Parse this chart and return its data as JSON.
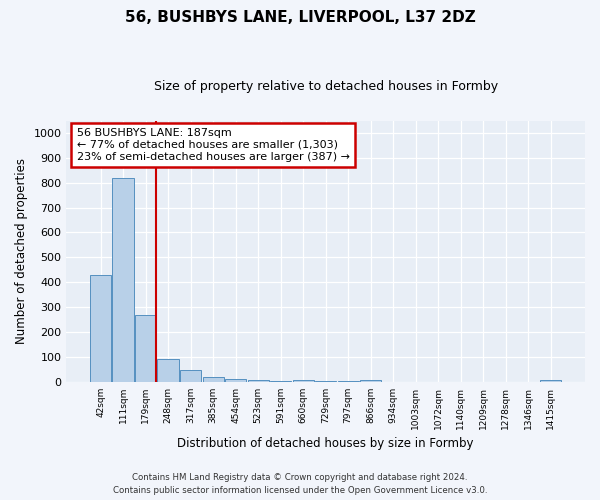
{
  "title1": "56, BUSHBYS LANE, LIVERPOOL, L37 2DZ",
  "title2": "Size of property relative to detached houses in Formby",
  "xlabel": "Distribution of detached houses by size in Formby",
  "ylabel": "Number of detached properties",
  "categories": [
    "42sqm",
    "111sqm",
    "179sqm",
    "248sqm",
    "317sqm",
    "385sqm",
    "454sqm",
    "523sqm",
    "591sqm",
    "660sqm",
    "729sqm",
    "797sqm",
    "866sqm",
    "934sqm",
    "1003sqm",
    "1072sqm",
    "1140sqm",
    "1209sqm",
    "1278sqm",
    "1346sqm",
    "1415sqm"
  ],
  "values": [
    430,
    820,
    270,
    90,
    45,
    18,
    12,
    7,
    1,
    8,
    1,
    1,
    8,
    0,
    0,
    0,
    0,
    0,
    0,
    0,
    7
  ],
  "bar_color": "#b8d0e8",
  "bar_edge_color": "#5590c0",
  "property_bar_index": 2,
  "property_line_color": "#cc0000",
  "annotation_text": "56 BUSHBYS LANE: 187sqm\n← 77% of detached houses are smaller (1,303)\n23% of semi-detached houses are larger (387) →",
  "annotation_box_color": "#ffffff",
  "annotation_box_edge": "#cc0000",
  "ylim": [
    0,
    1050
  ],
  "yticks": [
    0,
    100,
    200,
    300,
    400,
    500,
    600,
    700,
    800,
    900,
    1000
  ],
  "footer1": "Contains HM Land Registry data © Crown copyright and database right 2024.",
  "footer2": "Contains public sector information licensed under the Open Government Licence v3.0.",
  "bg_color": "#f2f5fb",
  "plot_bg_color": "#e8eef6"
}
